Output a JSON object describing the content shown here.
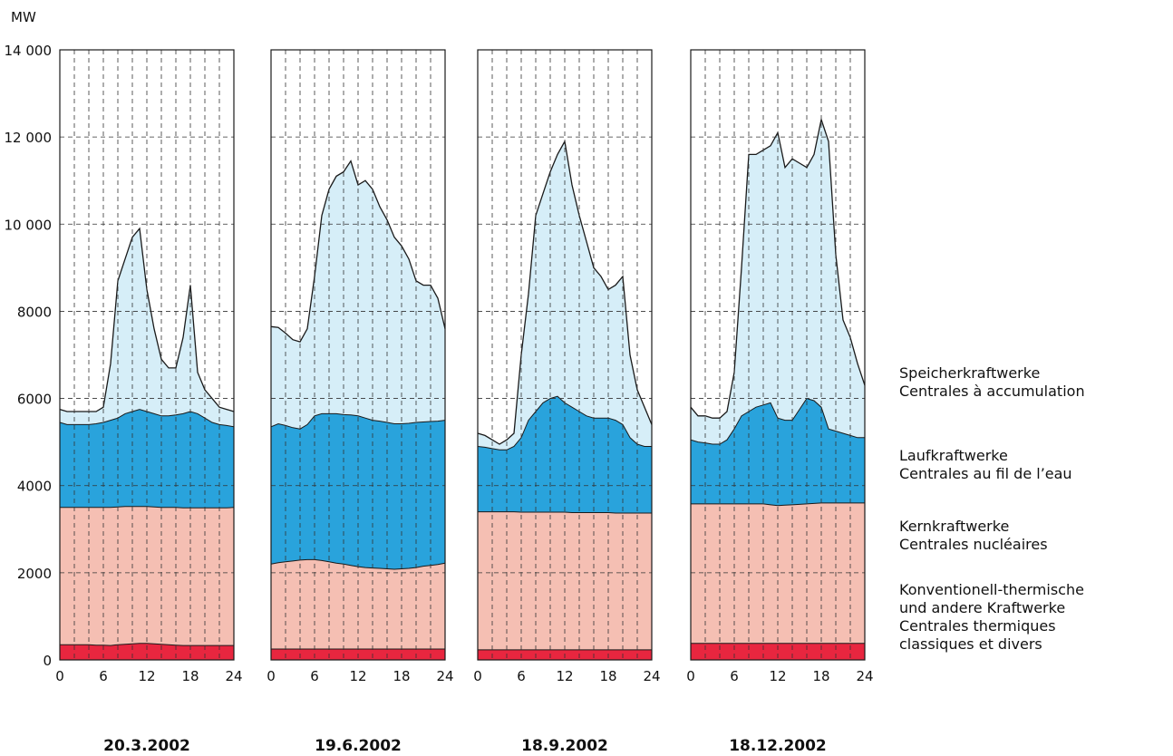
{
  "chart_data": {
    "type": "area",
    "stacked": true,
    "y_unit": "MW",
    "ylim": [
      0,
      14000
    ],
    "y_ticks": [
      0,
      2000,
      4000,
      6000,
      8000,
      10000,
      12000,
      14000
    ],
    "y_tick_labels": [
      "0",
      "2000",
      "4000",
      "6000",
      "8000",
      "10 000",
      "12 000",
      "14 000"
    ],
    "xlim": [
      0,
      24
    ],
    "x_ticks": [
      0,
      6,
      12,
      18,
      24
    ],
    "x_tick_labels": [
      "0",
      "6",
      "12",
      "18",
      "24"
    ],
    "grid": true,
    "colors": {
      "conventional": "#e8263f",
      "nuclear": "#f5bfb3",
      "run_of_river": "#29a3dc",
      "storage": "#d6eef8",
      "line": "#1a1a1a"
    },
    "legend": [
      {
        "key": "storage",
        "lines": [
          "Speicherkraftwerke",
          "Centrales à accumulation"
        ]
      },
      {
        "key": "run_of_river",
        "lines": [
          "Laufkraftwerke",
          "Centrales au fil de l’eau"
        ]
      },
      {
        "key": "nuclear",
        "lines": [
          "Kernkraftwerke",
          "Centrales nucléaires"
        ]
      },
      {
        "key": "conventional",
        "lines": [
          "Konventionell-thermische",
          "und andere Kraftwerke",
          "Centrales thermiques",
          "classiques et divers"
        ]
      }
    ],
    "panels": [
      {
        "date": "20.3.2002",
        "x": [
          0,
          1,
          2,
          3,
          4,
          5,
          6,
          7,
          8,
          9,
          10,
          11,
          12,
          13,
          14,
          15,
          16,
          17,
          18,
          19,
          20,
          21,
          22,
          23,
          24
        ],
        "conventional_top": [
          350,
          350,
          350,
          350,
          350,
          340,
          340,
          330,
          350,
          360,
          370,
          380,
          380,
          370,
          360,
          350,
          340,
          330,
          330,
          330,
          330,
          330,
          330,
          330,
          330
        ],
        "nuclear_top": [
          3500,
          3500,
          3500,
          3500,
          3500,
          3500,
          3500,
          3500,
          3510,
          3520,
          3520,
          3520,
          3520,
          3510,
          3500,
          3500,
          3500,
          3490,
          3490,
          3490,
          3490,
          3490,
          3490,
          3490,
          3500
        ],
        "run_of_river_top": [
          5450,
          5400,
          5400,
          5400,
          5400,
          5420,
          5450,
          5500,
          5550,
          5650,
          5700,
          5750,
          5700,
          5650,
          5600,
          5600,
          5620,
          5650,
          5700,
          5650,
          5550,
          5450,
          5400,
          5380,
          5350
        ],
        "total": [
          5750,
          5700,
          5700,
          5700,
          5700,
          5700,
          5800,
          6800,
          8700,
          9200,
          9700,
          9900,
          8500,
          7600,
          6900,
          6700,
          6700,
          7400,
          8600,
          6600,
          6200,
          6000,
          5800,
          5750,
          5700
        ]
      },
      {
        "date": "19.6.2002",
        "x": [
          0,
          1,
          2,
          3,
          4,
          5,
          6,
          7,
          8,
          9,
          10,
          11,
          12,
          13,
          14,
          15,
          16,
          17,
          18,
          19,
          20,
          21,
          22,
          23,
          24
        ],
        "conventional_top": [
          250,
          250,
          250,
          250,
          250,
          250,
          250,
          250,
          250,
          250,
          250,
          250,
          250,
          250,
          250,
          250,
          250,
          250,
          250,
          250,
          250,
          250,
          250,
          250,
          250
        ],
        "nuclear_top": [
          2200,
          2230,
          2250,
          2270,
          2290,
          2300,
          2300,
          2280,
          2250,
          2220,
          2200,
          2170,
          2140,
          2120,
          2110,
          2100,
          2090,
          2080,
          2090,
          2100,
          2120,
          2150,
          2170,
          2190,
          2220
        ],
        "run_of_river_top": [
          5350,
          5420,
          5380,
          5330,
          5300,
          5400,
          5600,
          5650,
          5650,
          5650,
          5630,
          5620,
          5600,
          5550,
          5500,
          5480,
          5450,
          5420,
          5420,
          5430,
          5450,
          5460,
          5470,
          5480,
          5500
        ],
        "total": [
          7650,
          7630,
          7500,
          7350,
          7300,
          7600,
          8800,
          10200,
          10800,
          11100,
          11200,
          11450,
          10900,
          11000,
          10800,
          10400,
          10100,
          9700,
          9500,
          9200,
          8700,
          8600,
          8600,
          8300,
          7600
        ]
      },
      {
        "date": "18.9.2002",
        "x": [
          0,
          1,
          2,
          3,
          4,
          5,
          6,
          7,
          8,
          9,
          10,
          11,
          12,
          13,
          14,
          15,
          16,
          17,
          18,
          19,
          20,
          21,
          22,
          23,
          24
        ],
        "conventional_top": [
          230,
          230,
          230,
          230,
          230,
          230,
          230,
          230,
          230,
          230,
          230,
          230,
          230,
          230,
          230,
          230,
          230,
          230,
          230,
          230,
          230,
          230,
          230,
          230,
          230
        ],
        "nuclear_top": [
          3400,
          3400,
          3400,
          3400,
          3400,
          3400,
          3390,
          3390,
          3390,
          3390,
          3390,
          3390,
          3390,
          3380,
          3380,
          3380,
          3380,
          3380,
          3380,
          3370,
          3370,
          3370,
          3370,
          3370,
          3370
        ],
        "run_of_river_top": [
          4900,
          4880,
          4850,
          4820,
          4820,
          4900,
          5100,
          5500,
          5700,
          5900,
          6000,
          6050,
          5900,
          5800,
          5700,
          5600,
          5550,
          5550,
          5550,
          5500,
          5400,
          5100,
          4950,
          4900,
          4900
        ],
        "total": [
          5200,
          5150,
          5050,
          4950,
          5050,
          5200,
          7000,
          8400,
          10200,
          10700,
          11200,
          11600,
          11900,
          10900,
          10200,
          9600,
          9000,
          8800,
          8500,
          8600,
          8800,
          7000,
          6200,
          5800,
          5400
        ]
      },
      {
        "date": "18.12.2002",
        "x": [
          0,
          1,
          2,
          3,
          4,
          5,
          6,
          7,
          8,
          9,
          10,
          11,
          12,
          13,
          14,
          15,
          16,
          17,
          18,
          19,
          20,
          21,
          22,
          23,
          24
        ],
        "conventional_top": [
          380,
          380,
          380,
          380,
          380,
          380,
          380,
          380,
          380,
          380,
          380,
          380,
          380,
          380,
          380,
          380,
          380,
          380,
          380,
          380,
          380,
          380,
          380,
          380,
          380
        ],
        "nuclear_top": [
          3580,
          3580,
          3580,
          3580,
          3580,
          3580,
          3580,
          3580,
          3580,
          3580,
          3580,
          3560,
          3540,
          3550,
          3560,
          3570,
          3580,
          3590,
          3600,
          3600,
          3600,
          3600,
          3600,
          3600,
          3600
        ],
        "run_of_river_top": [
          5050,
          5000,
          4980,
          4950,
          4950,
          5050,
          5300,
          5600,
          5700,
          5800,
          5850,
          5900,
          5550,
          5500,
          5500,
          5750,
          6000,
          5950,
          5800,
          5300,
          5250,
          5200,
          5150,
          5100,
          5100
        ],
        "total": [
          5800,
          5600,
          5600,
          5550,
          5550,
          5700,
          6600,
          9000,
          11600,
          11600,
          11700,
          11800,
          12100,
          11300,
          11500,
          11400,
          11300,
          11600,
          12400,
          11900,
          9300,
          7800,
          7400,
          6800,
          6300
        ]
      }
    ]
  }
}
